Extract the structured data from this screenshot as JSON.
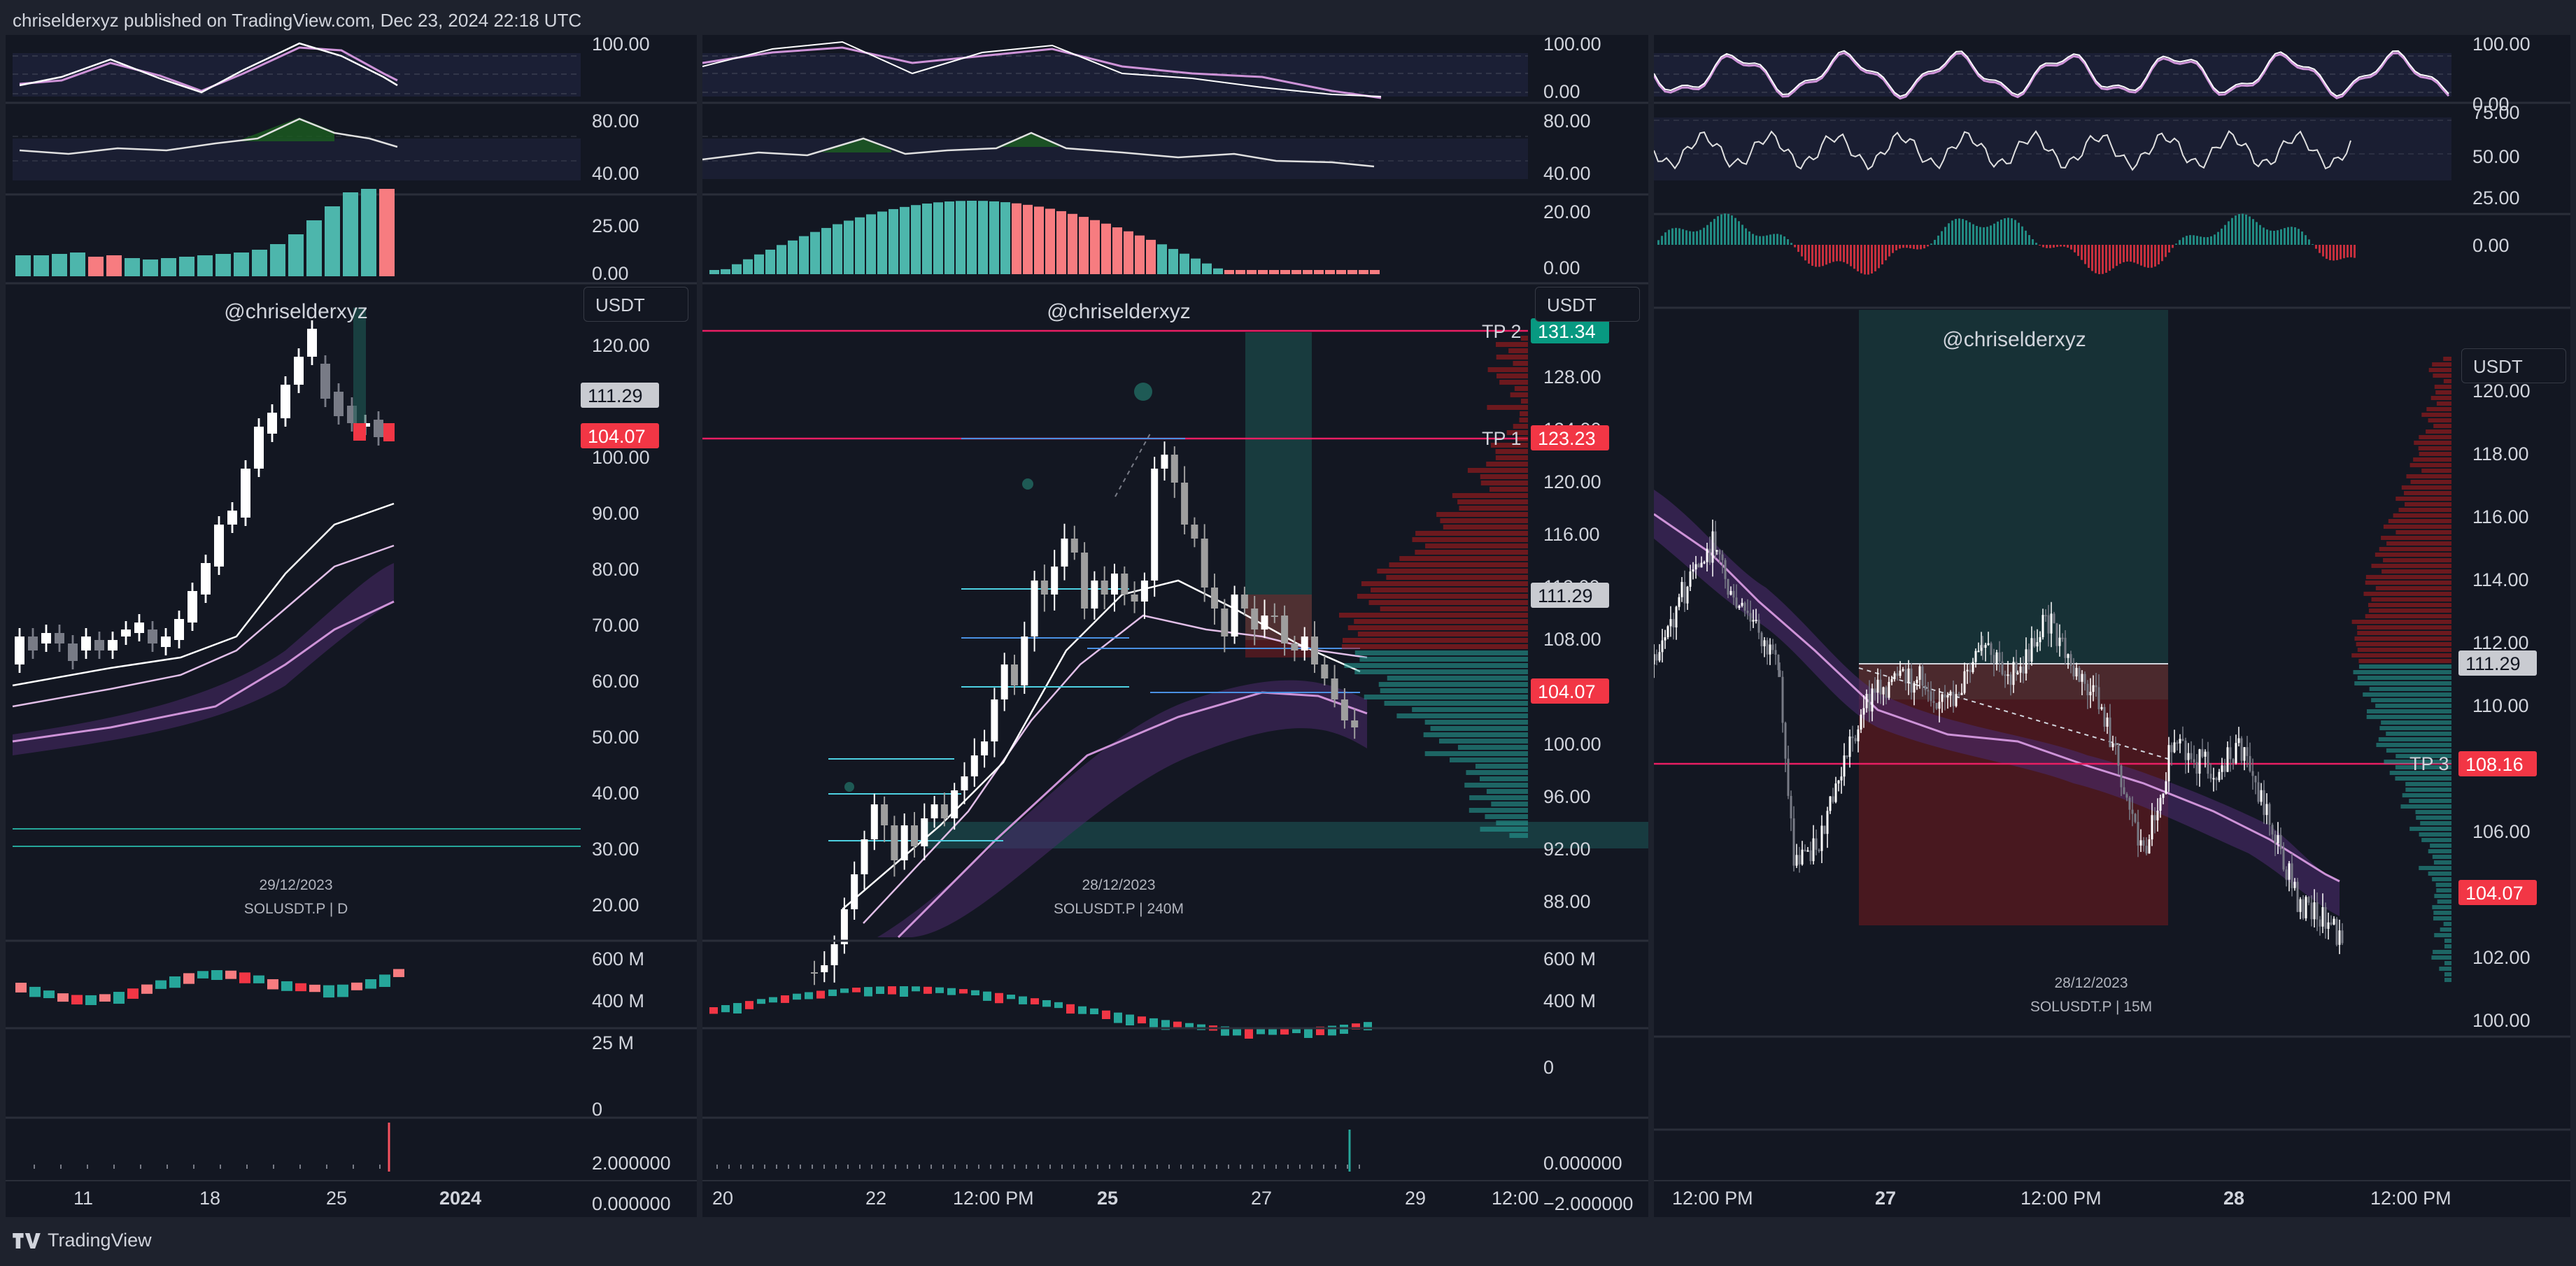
{
  "header": {
    "text": "chriselderxyz published on TradingView.com, Dec 23, 2024 22:18 UTC"
  },
  "footer": {
    "brand": "TradingView",
    "logo_icon": "tradingview-logo-icon"
  },
  "colors": {
    "background": "#1e222d",
    "panel": "#131722",
    "bull": "#26a69a",
    "bear": "#f7525f",
    "tp_line": "#e91e63",
    "ema": "#e1bee7"
  },
  "panels": [
    {
      "watermark": "@chriselderxyz",
      "currency": "USDT",
      "date": "29/12/2023",
      "symbol": "SOLUSDT.P | D",
      "rsi_top": [
        "100.00"
      ],
      "rsi2": [
        "80.00",
        "40.00"
      ],
      "hist": [
        "25.00",
        "0.00"
      ],
      "price_axis": [
        "120.00",
        "100.00",
        "90.00",
        "80.00",
        "70.00",
        "60.00",
        "50.00",
        "40.00",
        "30.00",
        "20.00"
      ],
      "price_tags": [
        "111.29",
        "104.07"
      ],
      "vol_axis": [
        "600 M",
        "400 M"
      ],
      "osc_axis": [
        "25 M",
        "0"
      ],
      "osc2_axis": [
        "2.000000",
        "0.000000"
      ],
      "time_axis": [
        "11",
        "18",
        "25",
        "2024"
      ],
      "progress": [
        {
          "ratio": 0.43
        },
        {
          "ratio": 0.78
        },
        {
          "ratio": 0.6
        }
      ]
    },
    {
      "watermark": "@chriselderxyz",
      "currency": "USDT",
      "date": "28/12/2023",
      "symbol": "SOLUSDT.P | 240M",
      "rsi_top": [
        "100.00",
        "0.00"
      ],
      "rsi2": [
        "80.00",
        "40.00"
      ],
      "hist": [
        "20.00",
        "0.00"
      ],
      "price_axis": [
        "128.00",
        "124.00",
        "120.00",
        "116.00",
        "112.00",
        "108.00",
        "100.00",
        "96.00",
        "92.00",
        "88.00"
      ],
      "tp2": {
        "label": "TP 2",
        "value": "131.34"
      },
      "tp1": {
        "label": "TP 1",
        "value": "123.23"
      },
      "price_tags": [
        "111.29",
        "104.07"
      ],
      "vol_axis": [
        "600 M",
        "400 M"
      ],
      "osc_axis": [
        "0"
      ],
      "osc2_axis": [
        "0.000000",
        "−2.000000"
      ],
      "time_axis": [
        "20",
        "22",
        "12:00 PM",
        "25",
        "27",
        "29",
        "12:00"
      ]
    },
    {
      "watermark": "@chriselderxyz",
      "currency": "USDT",
      "date": "28/12/2023",
      "symbol": "SOLUSDT.P | 15M",
      "rsi_top": [
        "100.00",
        "0.00"
      ],
      "rsi2": [
        "75.00",
        "50.00",
        "25.00"
      ],
      "hist": [
        "0.00"
      ],
      "price_axis": [
        "120.00",
        "118.00",
        "116.00",
        "114.00",
        "112.00",
        "110.00",
        "106.00",
        "102.00",
        "100.00"
      ],
      "tp3": {
        "label": "TP 3",
        "value": "108.16"
      },
      "price_tags": [
        "111.29",
        "104.07"
      ],
      "time_axis": [
        "12:00 PM",
        "27",
        "12:00 PM",
        "28",
        "12:00 PM"
      ]
    }
  ]
}
